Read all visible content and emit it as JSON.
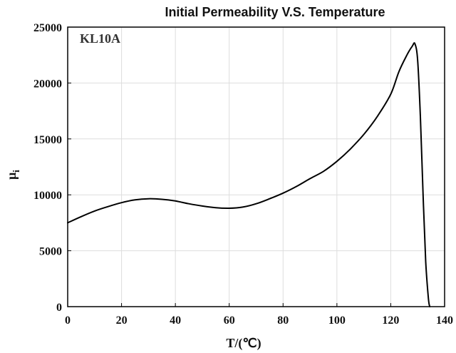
{
  "chart_data": {
    "type": "line",
    "title": "Initial Permeability V.S. Temperature",
    "xlabel": "T/(℃)",
    "ylabel": "μ",
    "ylabel_subscript": "i",
    "xlim": [
      0,
      140
    ],
    "ylim": [
      0,
      25000
    ],
    "xticks": [
      0,
      20,
      40,
      60,
      80,
      100,
      120,
      140
    ],
    "yticks": [
      0,
      5000,
      10000,
      15000,
      20000,
      25000
    ],
    "grid": true,
    "annotation": "KL10A",
    "series": [
      {
        "x": [
          0,
          5,
          10,
          15,
          20,
          25,
          30,
          35,
          40,
          45,
          50,
          55,
          60,
          65,
          70,
          75,
          80,
          85,
          90,
          95,
          100,
          105,
          110,
          115,
          120,
          123,
          126,
          128,
          129,
          130,
          131,
          132,
          133,
          134,
          134.5
        ],
        "values": [
          7500,
          8050,
          8550,
          8950,
          9300,
          9550,
          9650,
          9600,
          9450,
          9200,
          9000,
          8850,
          8800,
          8900,
          9200,
          9650,
          10150,
          10750,
          11450,
          12100,
          13000,
          14100,
          15400,
          17000,
          19000,
          21000,
          22500,
          23300,
          23500,
          22000,
          17000,
          10000,
          4000,
          700,
          0
        ]
      }
    ]
  }
}
